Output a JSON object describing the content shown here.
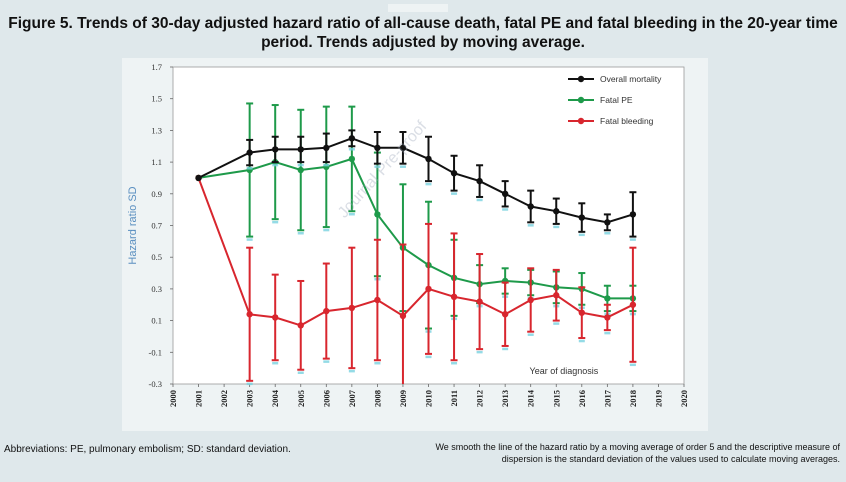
{
  "title": "Figure 5. Trends of 30-day adjusted hazard ratio of all-cause death, fatal PE and fatal bleeding in the 20-year time period. Trends adjusted by moving average.",
  "footnote_left": "Abbreviations: PE, pulmonary embolism; SD: standard deviation.",
  "footnote_right": "We smooth the line of the hazard ratio by a moving average of order 5 and the descriptive measure of dispersion is the standard deviation of the values used to calculate moving averages.",
  "watermark": "Journal Pre-proof",
  "colors": {
    "mortality": "#111111",
    "pe": "#1e9a4a",
    "bleeding": "#d8262e",
    "error_cap_tint": "#7ad3e0"
  },
  "chart_data": {
    "type": "line",
    "title": "Figure 5. Trends of 30-day adjusted hazard ratio of all-cause death, fatal PE and fatal bleeding in the 20-year time period. Trends adjusted by moving average.",
    "xlabel": "Year of diagnosis",
    "ylabel": "Hazard ratio SD",
    "ylim": [
      -0.3,
      1.7
    ],
    "yticks": [
      "1.7",
      "1.5",
      "1.3",
      "1.1",
      "0.9",
      "0.7",
      "0.5",
      "0.3",
      "0.1",
      "-0.1",
      "-0.3"
    ],
    "ytick_values": [
      1.7,
      1.5,
      1.3,
      1.1,
      0.9,
      0.7,
      0.5,
      0.3,
      0.1,
      -0.1,
      -0.3
    ],
    "xlim": [
      2000,
      2020
    ],
    "xticks": [
      "2000",
      "2001",
      "2002",
      "2003",
      "2004",
      "2005",
      "2006",
      "2007",
      "2008",
      "2009",
      "2010",
      "2011",
      "2012",
      "2013",
      "2014",
      "2015",
      "2016",
      "2017",
      "2018",
      "2019",
      "2020"
    ],
    "legend_position": "top-right",
    "series": [
      {
        "name": "Overall mortality",
        "x": [
          2001,
          2003,
          2004,
          2005,
          2006,
          2007,
          2008,
          2009,
          2010,
          2011,
          2012,
          2013,
          2014,
          2015,
          2016,
          2017,
          2018
        ],
        "values": [
          1.0,
          1.16,
          1.18,
          1.18,
          1.19,
          1.25,
          1.19,
          1.19,
          1.12,
          1.03,
          0.98,
          0.9,
          0.82,
          0.79,
          0.75,
          0.72,
          0.77
        ],
        "err": [
          0,
          0.08,
          0.08,
          0.08,
          0.09,
          0.05,
          0.1,
          0.1,
          0.14,
          0.11,
          0.1,
          0.08,
          0.1,
          0.08,
          0.09,
          0.05,
          0.14
        ]
      },
      {
        "name": "Fatal PE",
        "x": [
          2001,
          2003,
          2004,
          2005,
          2006,
          2007,
          2008,
          2009,
          2010,
          2011,
          2012,
          2013,
          2014,
          2015,
          2016,
          2017,
          2018
        ],
        "values": [
          1.0,
          1.05,
          1.1,
          1.05,
          1.07,
          1.12,
          0.77,
          0.56,
          0.45,
          0.37,
          0.33,
          0.35,
          0.34,
          0.31,
          0.3,
          0.24,
          0.24
        ],
        "err": [
          0,
          0.42,
          0.36,
          0.38,
          0.38,
          0.33,
          0.39,
          0.4,
          0.4,
          0.24,
          0.12,
          0.08,
          0.08,
          0.1,
          0.1,
          0.08,
          0.08
        ]
      },
      {
        "name": "Fatal bleeding",
        "x": [
          2001,
          2003,
          2004,
          2005,
          2006,
          2007,
          2008,
          2009,
          2010,
          2011,
          2012,
          2013,
          2014,
          2015,
          2016,
          2017,
          2018
        ],
        "values": [
          1.0,
          0.14,
          0.12,
          0.07,
          0.16,
          0.18,
          0.23,
          0.13,
          0.3,
          0.25,
          0.22,
          0.14,
          0.23,
          0.26,
          0.15,
          0.12,
          0.2
        ],
        "err": [
          0,
          0.42,
          0.27,
          0.28,
          0.3,
          0.38,
          0.38,
          0.45,
          0.41,
          0.4,
          0.3,
          0.2,
          0.2,
          0.16,
          0.16,
          0.08,
          0.36
        ]
      }
    ]
  }
}
